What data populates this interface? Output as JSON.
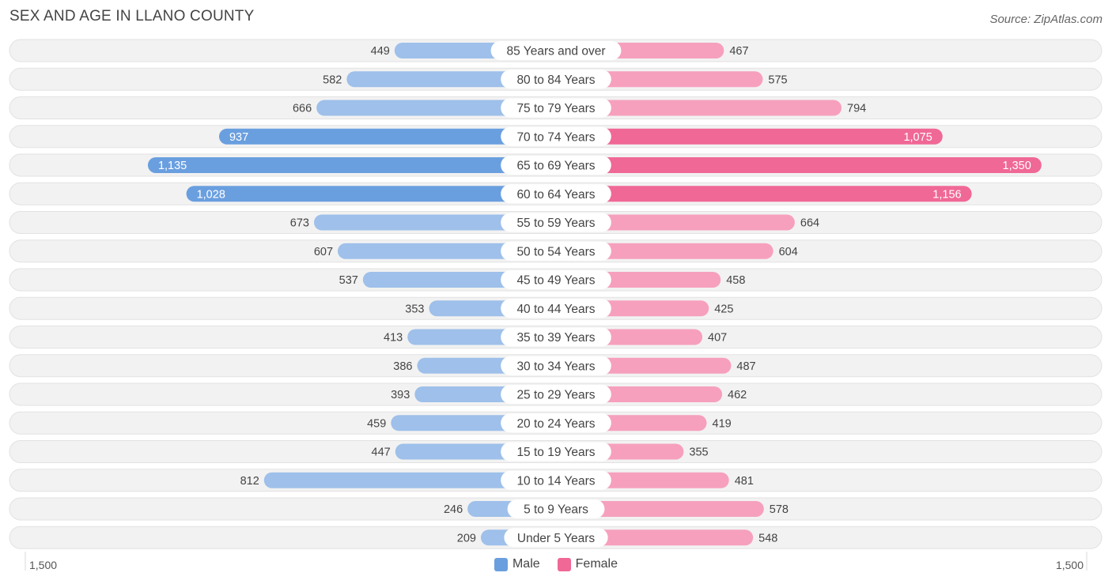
{
  "header": {
    "title": "SEX AND AGE IN LLANO COUNTY",
    "source": "Source: ZipAtlas.com"
  },
  "legend": {
    "male": "Male",
    "female": "Female"
  },
  "colors": {
    "male_strong": "#6a9fdf",
    "male_light": "#9ec0ea",
    "female_strong": "#f06896",
    "female_light": "#f6a0be",
    "row_bg": "#f2f2f2",
    "row_border": "#e2e2e2"
  },
  "chart_data": {
    "type": "bar",
    "orientation": "horizontal-diverging",
    "categories": [
      "85 Years and over",
      "80 to 84 Years",
      "75 to 79 Years",
      "70 to 74 Years",
      "65 to 69 Years",
      "60 to 64 Years",
      "55 to 59 Years",
      "50 to 54 Years",
      "45 to 49 Years",
      "40 to 44 Years",
      "35 to 39 Years",
      "30 to 34 Years",
      "25 to 29 Years",
      "20 to 24 Years",
      "15 to 19 Years",
      "10 to 14 Years",
      "5 to 9 Years",
      "Under 5 Years"
    ],
    "series": [
      {
        "name": "Male",
        "values": [
          449,
          582,
          666,
          937,
          1135,
          1028,
          673,
          607,
          537,
          353,
          413,
          386,
          393,
          459,
          447,
          812,
          246,
          209
        ]
      },
      {
        "name": "Female",
        "values": [
          467,
          575,
          794,
          1075,
          1350,
          1156,
          664,
          604,
          458,
          425,
          407,
          487,
          462,
          419,
          355,
          481,
          578,
          548
        ]
      }
    ],
    "xlim": [
      -1500,
      1500
    ],
    "axis_labels": {
      "left": "1,500",
      "right": "1,500"
    },
    "legend_position": "bottom-center"
  }
}
